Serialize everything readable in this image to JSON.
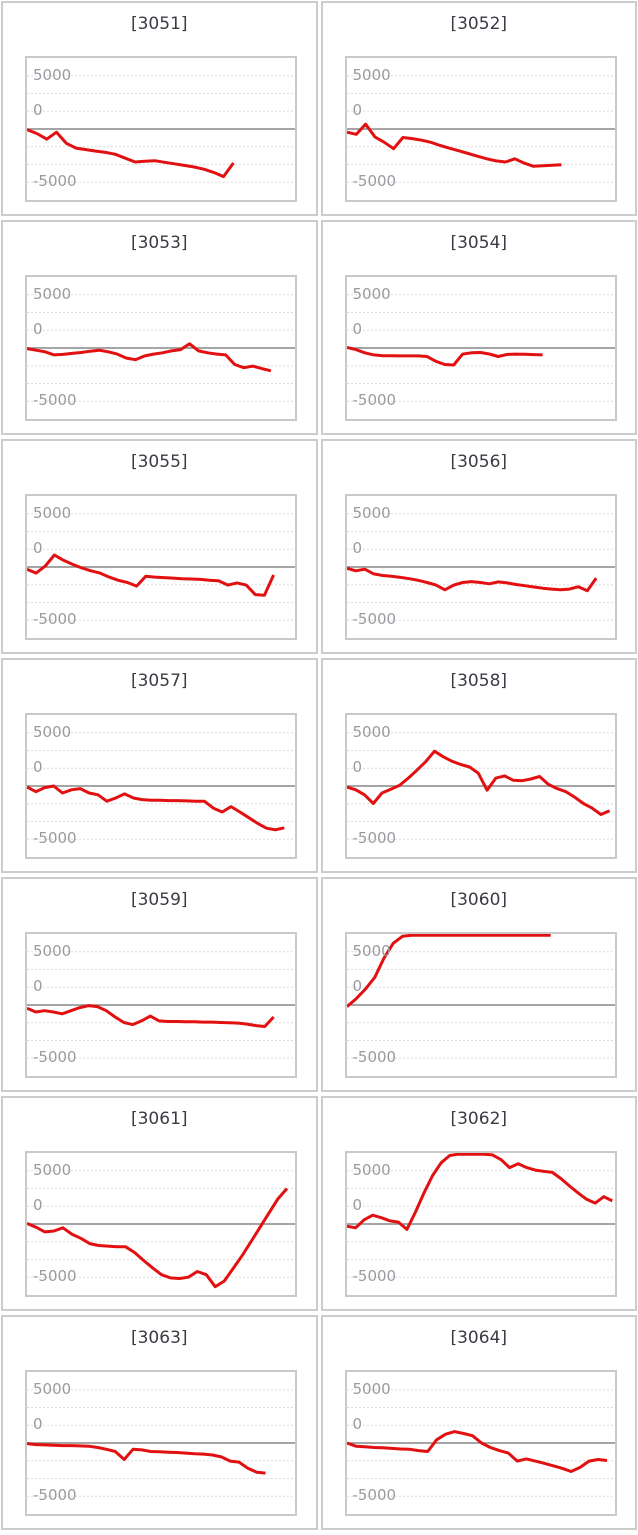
{
  "page": {
    "background": "#ffffff",
    "description": "grid of 14 daily coin-difference line charts, machine numbers 3051-3064"
  },
  "axis": {
    "tick_labels": [
      "5000",
      "0",
      "-5000"
    ],
    "tick_values": [
      5000,
      0,
      -5000
    ],
    "tick_color": "#9a9aa0",
    "grid_color": "#dcdcdc",
    "zero_line_color": "#878787",
    "line_color": "#e21010",
    "box_border_color": "#c9c9c9",
    "panel_border_color": "#cccccc",
    "title_color": "#3b3b44",
    "ylim": [
      -6668,
      6668
    ],
    "grid_rows": 8,
    "grid_on": true,
    "legend": "none"
  },
  "chart_data": [
    {
      "type": "line",
      "title": "[3051]",
      "machine_no": "3051",
      "x_fraction": 0.77,
      "values": [
        -60,
        -420,
        -950,
        -300,
        -1340,
        -1790,
        -1930,
        -2080,
        -2200,
        -2380,
        -2740,
        -3100,
        -3030,
        -2980,
        -3130,
        -3270,
        -3420,
        -3570,
        -3780,
        -4080,
        -4470,
        -3190
      ]
    },
    {
      "type": "line",
      "title": "[3052]",
      "machine_no": "3052",
      "x_fraction": 0.8,
      "values": [
        -300,
        -500,
        450,
        -750,
        -1250,
        -1850,
        -800,
        -900,
        -1050,
        -1250,
        -1550,
        -1800,
        -2050,
        -2300,
        -2550,
        -2800,
        -3000,
        -3100,
        -2800,
        -3200,
        -3500,
        -3450,
        -3400,
        -3350
      ]
    },
    {
      "type": "line",
      "title": "[3053]",
      "machine_no": "3053",
      "x_fraction": 0.91,
      "values": [
        -60,
        -210,
        -360,
        -650,
        -600,
        -510,
        -420,
        -300,
        -210,
        -360,
        -570,
        -950,
        -1100,
        -750,
        -570,
        -450,
        -270,
        -150,
        390,
        -270,
        -450,
        -570,
        -650,
        -1550,
        -1850,
        -1700,
        -1930,
        -2140
      ]
    },
    {
      "type": "line",
      "title": "[3054]",
      "machine_no": "3054",
      "x_fraction": 0.73,
      "values": [
        50,
        -150,
        -450,
        -650,
        -720,
        -720,
        -740,
        -740,
        -740,
        -800,
        -1250,
        -1550,
        -1600,
        -570,
        -450,
        -420,
        -560,
        -800,
        -600,
        -570,
        -590,
        -620,
        -650
      ]
    },
    {
      "type": "line",
      "title": "[3055]",
      "machine_no": "3055",
      "x_fraction": 0.92,
      "values": [
        -210,
        -570,
        90,
        1130,
        625,
        240,
        -90,
        -360,
        -570,
        -950,
        -1250,
        -1460,
        -1790,
        -870,
        -950,
        -1000,
        -1040,
        -1100,
        -1130,
        -1160,
        -1250,
        -1310,
        -1700,
        -1490,
        -1700,
        -2590,
        -2650,
        -750
      ]
    },
    {
      "type": "line",
      "title": "[3056]",
      "machine_no": "3056",
      "x_fraction": 0.93,
      "values": [
        -120,
        -360,
        -210,
        -650,
        -800,
        -870,
        -980,
        -1100,
        -1250,
        -1460,
        -1700,
        -2140,
        -1700,
        -1460,
        -1370,
        -1460,
        -1580,
        -1400,
        -1490,
        -1640,
        -1760,
        -1880,
        -1990,
        -2080,
        -2140,
        -2080,
        -1850,
        -2230,
        -1040
      ]
    },
    {
      "type": "line",
      "title": "[3057]",
      "machine_no": "3057",
      "x_fraction": 0.96,
      "values": [
        -90,
        -535,
        -150,
        0,
        -655,
        -360,
        -240,
        -655,
        -830,
        -1430,
        -1130,
        -745,
        -1130,
        -1280,
        -1340,
        -1340,
        -1370,
        -1370,
        -1400,
        -1430,
        -1430,
        -2080,
        -2440,
        -1930,
        -2440,
        -2975,
        -3510,
        -3960,
        -4110,
        -3930
      ]
    },
    {
      "type": "line",
      "title": "[3058]",
      "machine_no": "3058",
      "x_fraction": 0.98,
      "values": [
        -90,
        -360,
        -830,
        -1640,
        -655,
        -300,
        60,
        745,
        1490,
        2290,
        3270,
        2740,
        2320,
        2020,
        1785,
        1200,
        -390,
        745,
        950,
        535,
        500,
        655,
        890,
        150,
        -240,
        -535,
        -1040,
        -1640,
        -2080,
        -2680,
        -2320
      ]
    },
    {
      "type": "line",
      "title": "[3059]",
      "machine_no": "3059",
      "x_fraction": 0.92,
      "values": [
        -300,
        -655,
        -535,
        -655,
        -830,
        -535,
        -240,
        -60,
        -150,
        -535,
        -1130,
        -1640,
        -1845,
        -1490,
        -1040,
        -1490,
        -1550,
        -1550,
        -1580,
        -1580,
        -1610,
        -1610,
        -1640,
        -1670,
        -1700,
        -1790,
        -1930,
        -2020,
        -1130
      ]
    },
    {
      "type": "line",
      "title": "[3060]",
      "machine_no": "3060",
      "x_fraction": 0.76,
      "values": [
        -150,
        600,
        1500,
        2600,
        4400,
        5800,
        6450,
        6620,
        6620,
        6620,
        6620,
        6620,
        6620,
        6620,
        6620,
        6620,
        6620,
        6620,
        6620,
        6620,
        6620,
        6620,
        6620
      ]
    },
    {
      "type": "line",
      "title": "[3061]",
      "machine_no": "3061",
      "x_fraction": 0.97,
      "values": [
        60,
        -300,
        -745,
        -655,
        -360,
        -950,
        -1340,
        -1845,
        -2020,
        -2080,
        -2140,
        -2140,
        -2680,
        -3420,
        -4110,
        -4760,
        -5060,
        -5120,
        -5000,
        -4465,
        -4760,
        -5890,
        -5360,
        -4170,
        -2975,
        -1640,
        -300,
        1040,
        2380,
        3330
      ]
    },
    {
      "type": "line",
      "title": "[3062]",
      "machine_no": "3062",
      "x_fraction": 0.99,
      "values": [
        -210,
        -360,
        390,
        830,
        595,
        300,
        180,
        -510,
        1130,
        2920,
        4555,
        5745,
        6430,
        6700,
        6700,
        6700,
        6650,
        6490,
        6040,
        5300,
        5655,
        5300,
        5060,
        4940,
        4850,
        4260,
        3570,
        2920,
        2320,
        1965,
        2560,
        2170
      ]
    },
    {
      "type": "line",
      "title": "[3063]",
      "machine_no": "3063",
      "x_fraction": 0.89,
      "values": [
        -60,
        -150,
        -180,
        -210,
        -240,
        -240,
        -270,
        -300,
        -420,
        -595,
        -800,
        -1550,
        -595,
        -650,
        -800,
        -830,
        -860,
        -890,
        -950,
        -1010,
        -1040,
        -1130,
        -1310,
        -1700,
        -1790,
        -2380,
        -2740,
        -2830
      ]
    },
    {
      "type": "line",
      "title": "[3064]",
      "machine_no": "3064",
      "x_fraction": 0.97,
      "values": [
        0,
        -300,
        -360,
        -420,
        -450,
        -510,
        -565,
        -595,
        -715,
        -800,
        300,
        830,
        1070,
        890,
        685,
        0,
        -420,
        -715,
        -950,
        -1700,
        -1490,
        -1700,
        -1905,
        -2140,
        -2380,
        -2680,
        -2290,
        -1700,
        -1550,
        -1640
      ]
    }
  ]
}
